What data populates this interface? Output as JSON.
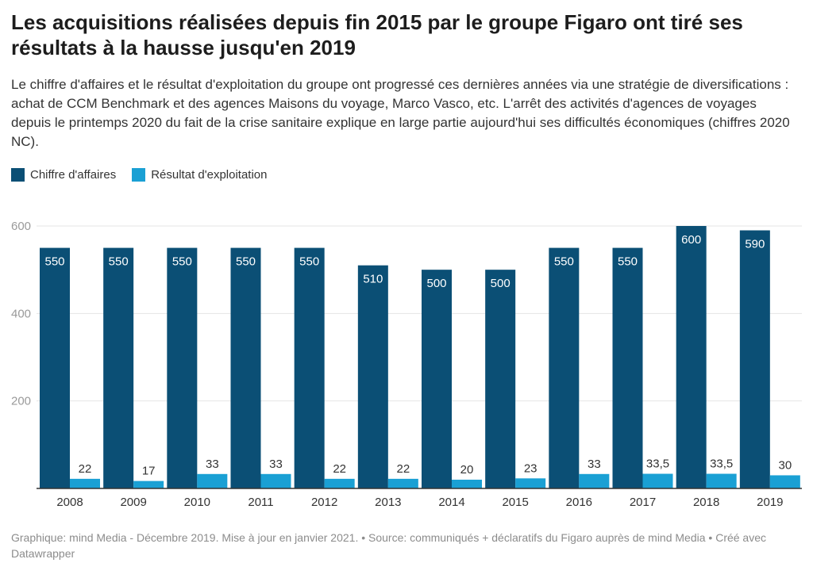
{
  "colors": {
    "revenue": "#0b4f75",
    "operating": "#1aa0d4",
    "grid": "#e4e4e4",
    "axis": "#333333"
  },
  "chart_data": {
    "type": "bar",
    "title": "Les acquisitions réalisées depuis fin 2015 par le groupe Figaro ont tiré ses résultats à la hausse jusqu'en 2019",
    "subtitle": "Le chiffre d'affaires et le résultat d'exploitation du groupe ont progressé ces dernières années via une stratégie de diversifications : achat de CCM Benchmark et des agences Maisons du voyage, Marco Vasco, etc. L'arrêt des activités d'agences de voyages depuis le printemps 2020 du fait de la crise sanitaire explique en large partie aujourd'hui ses difficultés économiques (chiffres 2020 NC).",
    "categories": [
      "2008",
      "2009",
      "2010",
      "2011",
      "2012",
      "2013",
      "2014",
      "2015",
      "2016",
      "2017",
      "2018",
      "2019"
    ],
    "series": [
      {
        "name": "Chiffre d'affaires",
        "values": [
          550,
          550,
          550,
          550,
          550,
          510,
          500,
          500,
          550,
          550,
          600,
          590
        ],
        "labels": [
          "550",
          "550",
          "550",
          "550",
          "550",
          "510",
          "500",
          "500",
          "550",
          "550",
          "600",
          "590"
        ]
      },
      {
        "name": "Résultat d'exploitation",
        "values": [
          22,
          17,
          33,
          33,
          22,
          22,
          20,
          23,
          33,
          33.5,
          33.5,
          30
        ],
        "labels": [
          "22",
          "17",
          "33",
          "33",
          "22",
          "22",
          "20",
          "23",
          "33",
          "33,5",
          "33,5",
          "30"
        ]
      }
    ],
    "ylim": [
      0,
      600
    ],
    "yticks": [
      "200",
      "400",
      "600"
    ],
    "grid": true,
    "legend": "top-left",
    "footer": "Graphique: mind Media - Décembre 2019. Mise à jour en janvier 2021. • Source: communiqués + déclaratifs du Figaro auprès de mind Media • Créé avec Datawrapper"
  }
}
